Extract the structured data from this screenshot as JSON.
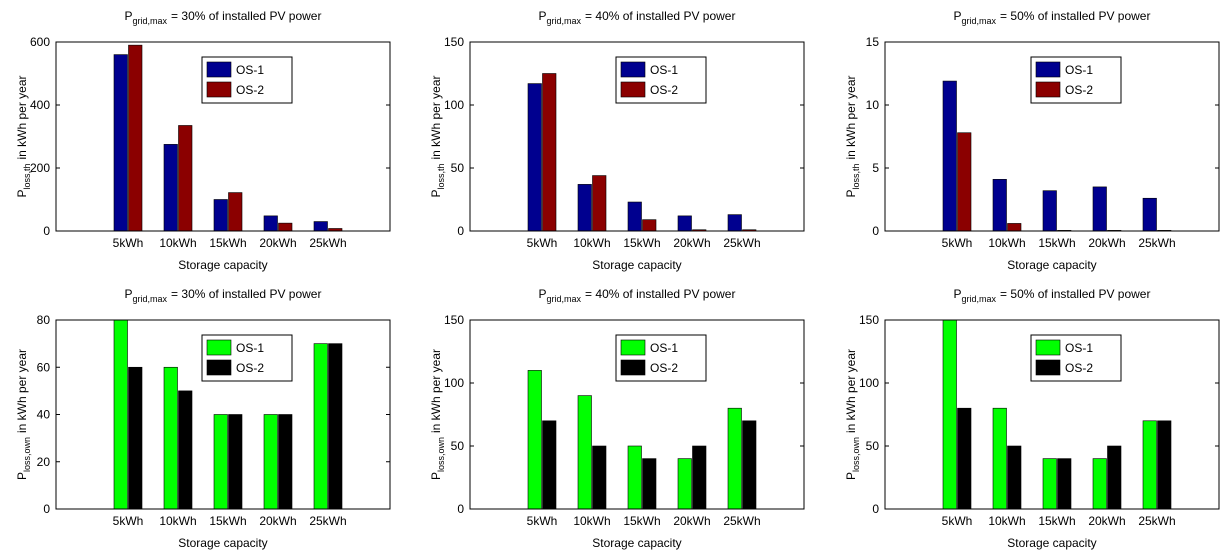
{
  "chart_data": [
    {
      "type": "bar",
      "title": {
        "symbol": "P",
        "subscript": "grid,max",
        "text": "= 30% of installed PV power"
      },
      "xlabel": "Storage capacity",
      "ylabel": {
        "symbol": "P",
        "subscript": "loss,th",
        "text": "in kWh per year"
      },
      "categories": [
        "5kWh",
        "10kWh",
        "15kWh",
        "20kWh",
        "25kWh"
      ],
      "series": [
        {
          "name": "OS-1",
          "color": "#00008f",
          "values": [
            560,
            275,
            100,
            48,
            30
          ]
        },
        {
          "name": "OS-2",
          "color": "#8b0000",
          "values": [
            590,
            335,
            122,
            25,
            8
          ]
        }
      ],
      "ylim": [
        0,
        600
      ],
      "yticks": [
        0,
        200,
        400,
        600
      ],
      "legend": "north"
    },
    {
      "type": "bar",
      "title": {
        "symbol": "P",
        "subscript": "grid,max",
        "text": "= 40% of installed PV power"
      },
      "xlabel": "Storage capacity",
      "ylabel": {
        "symbol": "P",
        "subscript": "loss,th",
        "text": "in kWh per year"
      },
      "categories": [
        "5kWh",
        "10kWh",
        "15kWh",
        "20kWh",
        "25kWh"
      ],
      "series": [
        {
          "name": "OS-1",
          "color": "#00008f",
          "values": [
            117,
            37,
            23,
            12,
            13
          ]
        },
        {
          "name": "OS-2",
          "color": "#8b0000",
          "values": [
            125,
            44,
            9,
            1,
            1
          ]
        }
      ],
      "ylim": [
        0,
        150
      ],
      "yticks": [
        0,
        50,
        100,
        150
      ],
      "legend": "north"
    },
    {
      "type": "bar",
      "title": {
        "symbol": "P",
        "subscript": "grid,max",
        "text": "= 50% of installed PV power"
      },
      "xlabel": "Storage capacity",
      "ylabel": {
        "symbol": "P",
        "subscript": "loss,th",
        "text": "in kWh per year"
      },
      "categories": [
        "5kWh",
        "10kWh",
        "15kWh",
        "20kWh",
        "25kWh"
      ],
      "series": [
        {
          "name": "OS-1",
          "color": "#00008f",
          "values": [
            11.9,
            4.1,
            3.2,
            3.5,
            2.6
          ]
        },
        {
          "name": "OS-2",
          "color": "#8b0000",
          "values": [
            7.8,
            0.6,
            0.05,
            0.05,
            0.05
          ]
        }
      ],
      "ylim": [
        0,
        15
      ],
      "yticks": [
        0,
        5,
        10,
        15
      ],
      "legend": "north"
    },
    {
      "type": "bar",
      "title": {
        "symbol": "P",
        "subscript": "grid,max",
        "text": "= 30% of installed PV power"
      },
      "xlabel": "Storage capacity",
      "ylabel": {
        "symbol": "P",
        "subscript": "loss,own",
        "text": "in kWh per year"
      },
      "categories": [
        "5kWh",
        "10kWh",
        "15kWh",
        "20kWh",
        "25kWh"
      ],
      "series": [
        {
          "name": "OS-1",
          "color": "#00ff00",
          "values": [
            80,
            60,
            40,
            40,
            70
          ]
        },
        {
          "name": "OS-2",
          "color": "#000000",
          "values": [
            60,
            50,
            40,
            40,
            70
          ]
        }
      ],
      "ylim": [
        0,
        80
      ],
      "yticks": [
        0,
        20,
        40,
        60,
        80
      ],
      "legend": "north"
    },
    {
      "type": "bar",
      "title": {
        "symbol": "P",
        "subscript": "grid,max",
        "text": "= 40% of installed PV power"
      },
      "xlabel": "Storage capacity",
      "ylabel": {
        "symbol": "P",
        "subscript": "loss,own",
        "text": "in kWh per year"
      },
      "categories": [
        "5kWh",
        "10kWh",
        "15kWh",
        "20kWh",
        "25kWh"
      ],
      "series": [
        {
          "name": "OS-1",
          "color": "#00ff00",
          "values": [
            110,
            90,
            50,
            40,
            80
          ]
        },
        {
          "name": "OS-2",
          "color": "#000000",
          "values": [
            70,
            50,
            40,
            50,
            70
          ]
        }
      ],
      "ylim": [
        0,
        150
      ],
      "yticks": [
        0,
        50,
        100,
        150
      ],
      "legend": "north"
    },
    {
      "type": "bar",
      "title": {
        "symbol": "P",
        "subscript": "grid,max",
        "text": "= 50% of installed PV power"
      },
      "xlabel": "Storage capacity",
      "ylabel": {
        "symbol": "P",
        "subscript": "loss,own",
        "text": "in kWh per year"
      },
      "categories": [
        "5kWh",
        "10kWh",
        "15kWh",
        "20kWh",
        "25kWh"
      ],
      "series": [
        {
          "name": "OS-1",
          "color": "#00ff00",
          "values": [
            150,
            80,
            40,
            40,
            70
          ]
        },
        {
          "name": "OS-2",
          "color": "#000000",
          "values": [
            80,
            50,
            40,
            50,
            70
          ]
        }
      ],
      "ylim": [
        0,
        150
      ],
      "yticks": [
        0,
        50,
        100,
        150
      ],
      "legend": "north"
    }
  ]
}
